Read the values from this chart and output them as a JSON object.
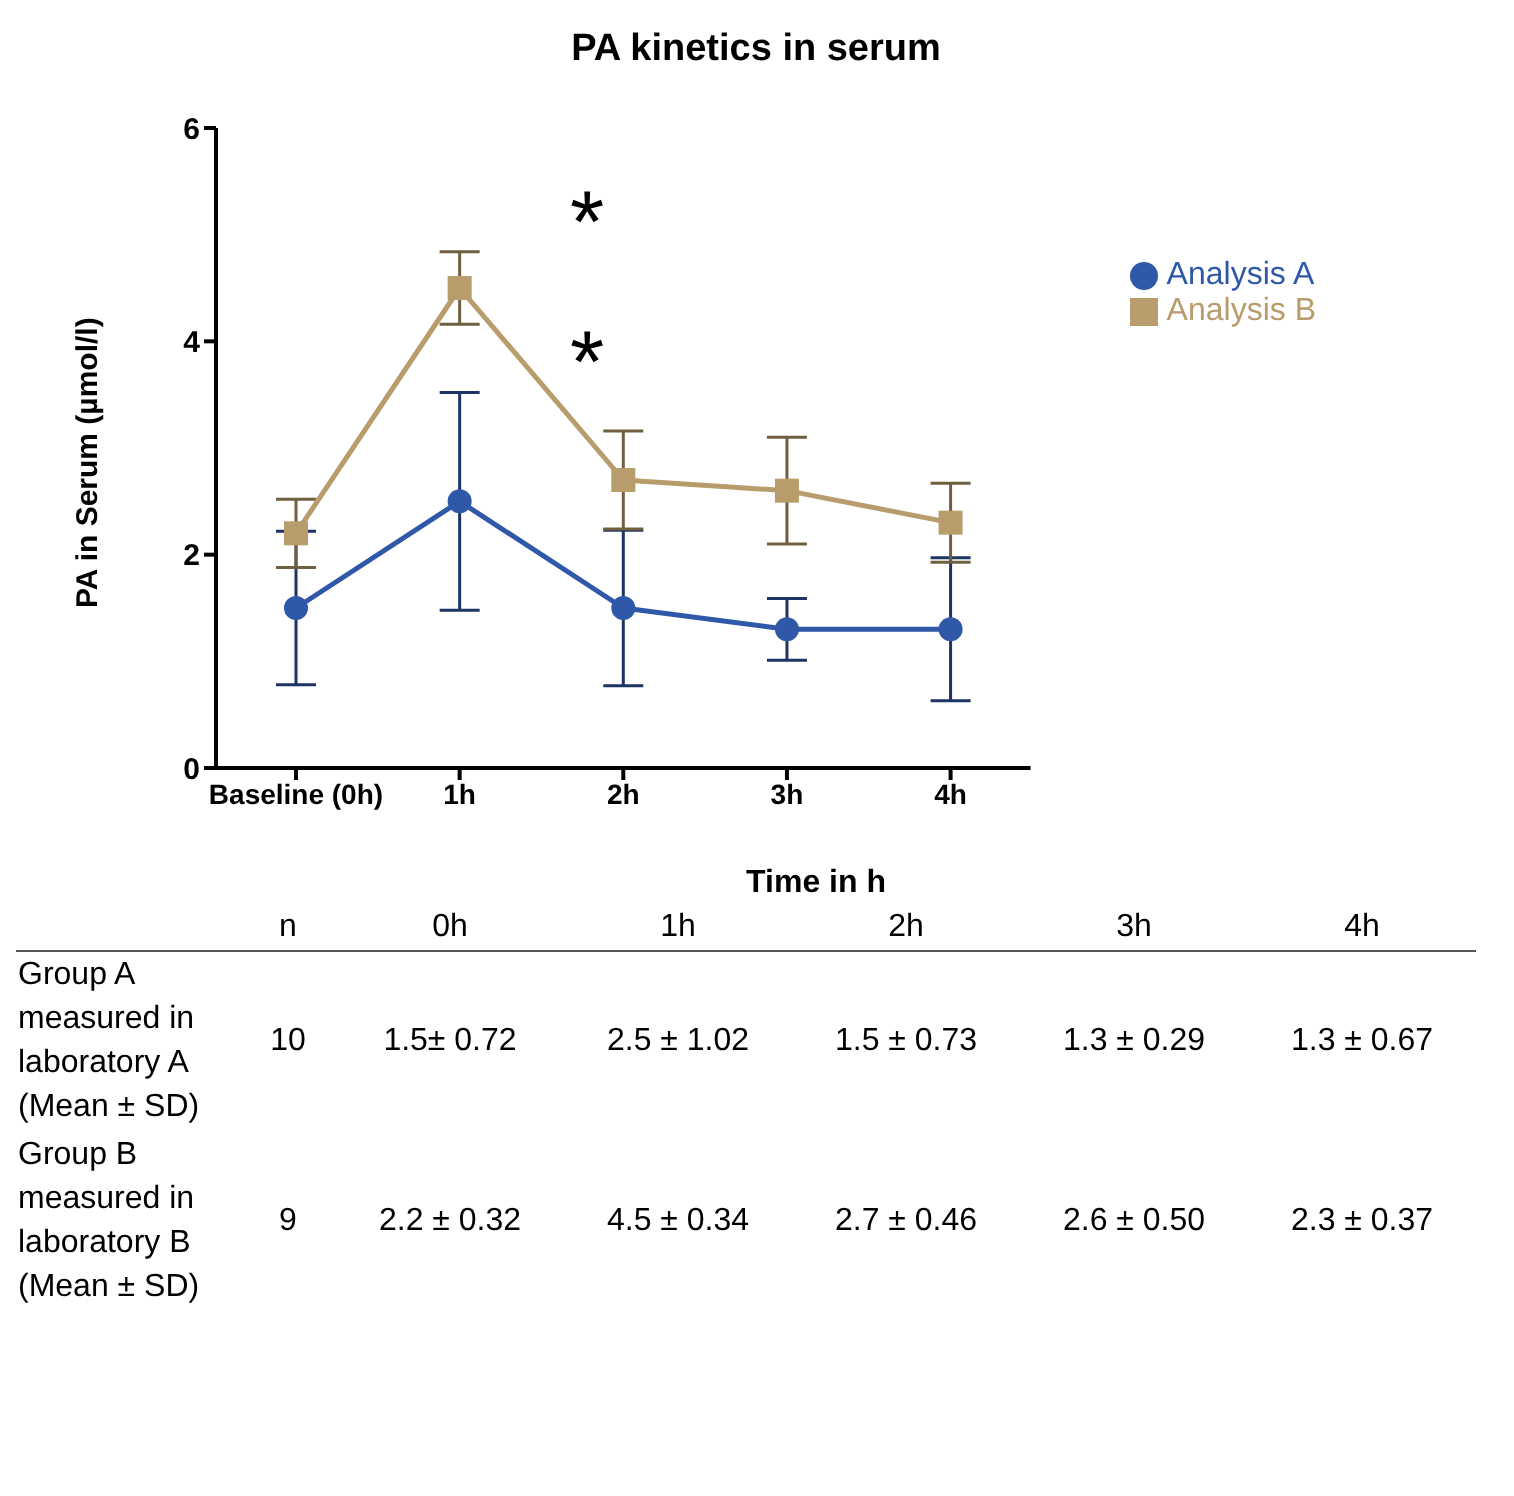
{
  "chart_data": {
    "type": "line",
    "title": "PA kinetics in serum",
    "xlabel": "Time in h",
    "ylabel": "PA in Serum (µmol/l)",
    "categories": [
      "Baseline (0h)",
      "1h",
      "2h",
      "3h",
      "4h"
    ],
    "ylim": [
      0,
      6
    ],
    "yticks": [
      0,
      2,
      4,
      6
    ],
    "grid": false,
    "legend": "top right",
    "series": [
      {
        "name": "Analysis A",
        "color": "#2f59a8",
        "marker": "circle",
        "values": [
          1.5,
          2.5,
          1.5,
          1.3,
          1.3
        ],
        "errors": [
          0.72,
          1.02,
          0.73,
          0.29,
          0.67
        ]
      },
      {
        "name": "Analysis B",
        "color": "#b99c6b",
        "marker": "square",
        "values": [
          2.2,
          4.5,
          2.7,
          2.6,
          2.3
        ],
        "errors": [
          0.32,
          0.34,
          0.46,
          0.5,
          0.37
        ]
      }
    ],
    "annotations": [
      "*",
      "*",
      "n",
      "0h",
      "1h",
      "2h",
      "3h",
      "4h",
      "Group A measured in laboratory A (Mean ± SD)",
      "10",
      "1.5± 0.72",
      "2.5 ± 1.02",
      "1.5 ± 0.73",
      "1.3 ± 0.29",
      "1.3 ± 0.67",
      "Group B measured in laboratory B (Mean ± SD)",
      "9",
      "2.2 ± 0.32",
      "4.5 ± 0.34",
      "2.7 ± 0.46",
      "2.6 ± 0.50",
      "2.3 ± 0.37"
    ]
  }
}
